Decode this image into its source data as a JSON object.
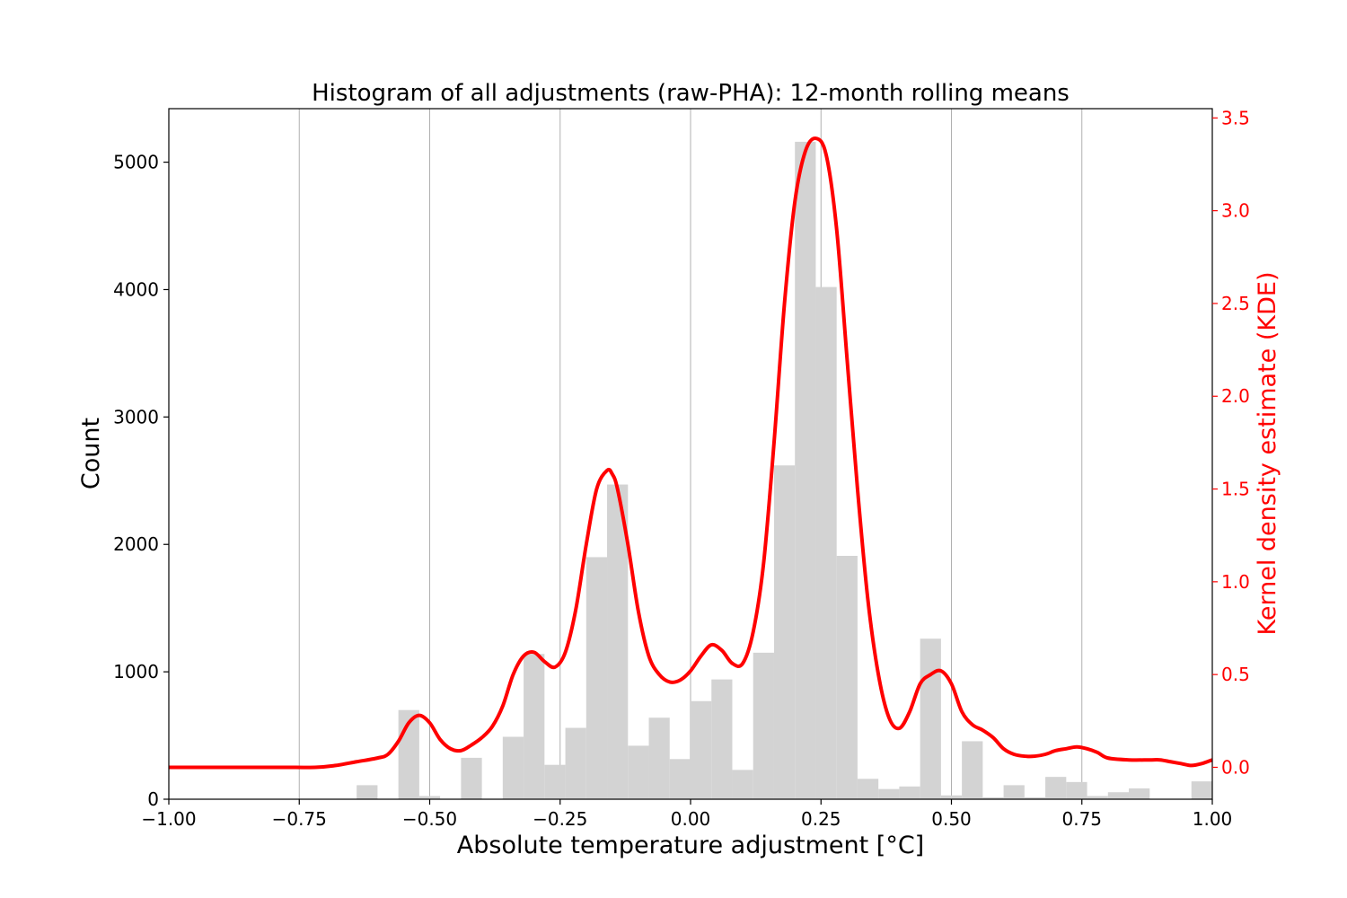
{
  "chart_data": {
    "type": "bar",
    "title": "Histogram of all adjustments (raw-PHA): 12-month rolling means",
    "xlabel": "Absolute temperature adjustment [°C]",
    "ylabel": "Count",
    "y2label": "Kernel density estimate (KDE)",
    "xlim": [
      -1.0,
      1.0
    ],
    "ylim": [
      0,
      5420
    ],
    "y2lim": [
      -0.172,
      3.55
    ],
    "grid": "vertical",
    "xticks": [
      "−1.00",
      "−0.75",
      "−0.50",
      "−0.25",
      "0.00",
      "0.25",
      "0.50",
      "0.75",
      "1.00"
    ],
    "xtick_values": [
      -1.0,
      -0.75,
      -0.5,
      -0.25,
      0.0,
      0.25,
      0.5,
      0.75,
      1.0
    ],
    "yticks": [
      "0",
      "1000",
      "2000",
      "3000",
      "4000",
      "5000"
    ],
    "ytick_values": [
      0,
      1000,
      2000,
      3000,
      4000,
      5000
    ],
    "y2ticks": [
      "0.0",
      "0.5",
      "1.0",
      "1.5",
      "2.0",
      "2.5",
      "3.0",
      "3.5"
    ],
    "y2tick_values": [
      0.0,
      0.5,
      1.0,
      1.5,
      2.0,
      2.5,
      3.0,
      3.5
    ],
    "histogram": {
      "color": "#d3d3d3",
      "bin_width": 0.04,
      "bins": [
        {
          "x0": -0.64,
          "x1": -0.6,
          "count": 110
        },
        {
          "x0": -0.56,
          "x1": -0.52,
          "count": 700
        },
        {
          "x0": -0.52,
          "x1": -0.48,
          "count": 25
        },
        {
          "x0": -0.44,
          "x1": -0.4,
          "count": 325
        },
        {
          "x0": -0.36,
          "x1": -0.32,
          "count": 490
        },
        {
          "x0": -0.32,
          "x1": -0.28,
          "count": 1140
        },
        {
          "x0": -0.28,
          "x1": -0.24,
          "count": 270
        },
        {
          "x0": -0.24,
          "x1": -0.2,
          "count": 560
        },
        {
          "x0": -0.2,
          "x1": -0.16,
          "count": 1900
        },
        {
          "x0": -0.16,
          "x1": -0.12,
          "count": 2470
        },
        {
          "x0": -0.12,
          "x1": -0.08,
          "count": 420
        },
        {
          "x0": -0.08,
          "x1": -0.04,
          "count": 640
        },
        {
          "x0": -0.04,
          "x1": 0.0,
          "count": 315
        },
        {
          "x0": 0.0,
          "x1": 0.04,
          "count": 770
        },
        {
          "x0": 0.04,
          "x1": 0.08,
          "count": 940
        },
        {
          "x0": 0.08,
          "x1": 0.12,
          "count": 230
        },
        {
          "x0": 0.12,
          "x1": 0.16,
          "count": 1150
        },
        {
          "x0": 0.16,
          "x1": 0.2,
          "count": 2620
        },
        {
          "x0": 0.2,
          "x1": 0.24,
          "count": 5160
        },
        {
          "x0": 0.24,
          "x1": 0.28,
          "count": 4020
        },
        {
          "x0": 0.28,
          "x1": 0.32,
          "count": 1910
        },
        {
          "x0": 0.32,
          "x1": 0.36,
          "count": 160
        },
        {
          "x0": 0.36,
          "x1": 0.4,
          "count": 80
        },
        {
          "x0": 0.4,
          "x1": 0.44,
          "count": 100
        },
        {
          "x0": 0.44,
          "x1": 0.48,
          "count": 1260
        },
        {
          "x0": 0.48,
          "x1": 0.52,
          "count": 30
        },
        {
          "x0": 0.52,
          "x1": 0.56,
          "count": 455
        },
        {
          "x0": 0.56,
          "x1": 0.6,
          "count": 15
        },
        {
          "x0": 0.6,
          "x1": 0.64,
          "count": 110
        },
        {
          "x0": 0.64,
          "x1": 0.68,
          "count": 15
        },
        {
          "x0": 0.68,
          "x1": 0.72,
          "count": 175
        },
        {
          "x0": 0.72,
          "x1": 0.76,
          "count": 135
        },
        {
          "x0": 0.76,
          "x1": 0.8,
          "count": 25
        },
        {
          "x0": 0.8,
          "x1": 0.84,
          "count": 55
        },
        {
          "x0": 0.84,
          "x1": 0.88,
          "count": 85
        },
        {
          "x0": 0.96,
          "x1": 1.0,
          "count": 140
        }
      ]
    },
    "kde": {
      "color": "#ff0000",
      "x": [
        -1.0,
        -0.8,
        -0.72,
        -0.68,
        -0.64,
        -0.6,
        -0.58,
        -0.56,
        -0.54,
        -0.52,
        -0.5,
        -0.48,
        -0.46,
        -0.44,
        -0.42,
        -0.4,
        -0.38,
        -0.36,
        -0.34,
        -0.32,
        -0.3,
        -0.28,
        -0.26,
        -0.24,
        -0.22,
        -0.2,
        -0.18,
        -0.16,
        -0.15,
        -0.14,
        -0.12,
        -0.1,
        -0.08,
        -0.06,
        -0.04,
        -0.02,
        0.0,
        0.02,
        0.04,
        0.06,
        0.08,
        0.1,
        0.12,
        0.14,
        0.16,
        0.18,
        0.2,
        0.22,
        0.24,
        0.26,
        0.28,
        0.3,
        0.32,
        0.34,
        0.36,
        0.38,
        0.4,
        0.42,
        0.44,
        0.46,
        0.48,
        0.5,
        0.52,
        0.54,
        0.56,
        0.58,
        0.6,
        0.62,
        0.64,
        0.66,
        0.68,
        0.7,
        0.72,
        0.74,
        0.76,
        0.78,
        0.8,
        0.84,
        0.88,
        0.9,
        0.92,
        0.94,
        0.96,
        0.98,
        1.0
      ],
      "y": [
        0.0,
        0.0,
        0.0,
        0.01,
        0.03,
        0.05,
        0.07,
        0.14,
        0.24,
        0.28,
        0.24,
        0.15,
        0.1,
        0.09,
        0.12,
        0.16,
        0.22,
        0.33,
        0.5,
        0.6,
        0.62,
        0.57,
        0.54,
        0.62,
        0.85,
        1.2,
        1.5,
        1.6,
        1.58,
        1.5,
        1.2,
        0.84,
        0.6,
        0.5,
        0.46,
        0.47,
        0.52,
        0.6,
        0.66,
        0.63,
        0.56,
        0.56,
        0.73,
        1.1,
        1.75,
        2.5,
        3.05,
        3.32,
        3.39,
        3.3,
        2.9,
        2.2,
        1.5,
        0.9,
        0.5,
        0.27,
        0.21,
        0.3,
        0.45,
        0.5,
        0.52,
        0.45,
        0.3,
        0.23,
        0.2,
        0.16,
        0.1,
        0.07,
        0.06,
        0.06,
        0.07,
        0.09,
        0.1,
        0.11,
        0.1,
        0.08,
        0.05,
        0.04,
        0.04,
        0.04,
        0.03,
        0.02,
        0.01,
        0.02,
        0.04
      ]
    }
  }
}
